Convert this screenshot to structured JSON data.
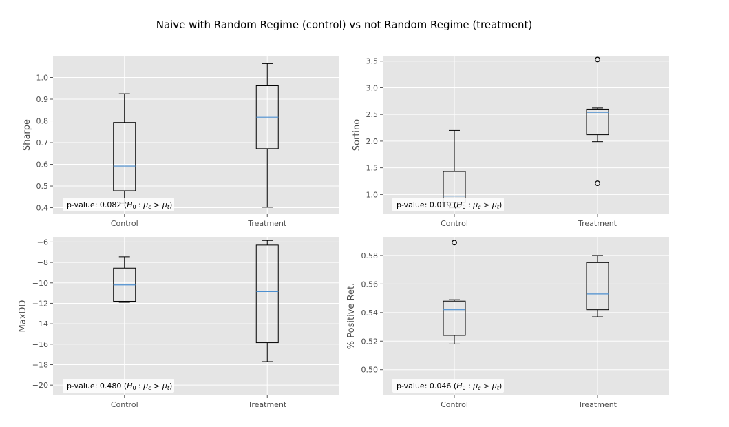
{
  "figure_title": "Naive with Random Regime (control) vs not Random Regime (treatment)",
  "chart_data": [
    {
      "type": "box",
      "ylabel": "Sharpe",
      "categories": [
        "Control",
        "Treatment"
      ],
      "ylim": [
        0.37,
        1.1
      ],
      "yticks": [
        0.4,
        0.5,
        0.6,
        0.7,
        0.8,
        0.9,
        1.0
      ],
      "ytick_labels": [
        "0.4",
        "0.5",
        "0.6",
        "0.7",
        "0.8",
        "0.9",
        "1.0"
      ],
      "grid": true,
      "boxes": [
        {
          "name": "Control",
          "whislo": 0.42,
          "q1": 0.478,
          "med": 0.592,
          "q3": 0.793,
          "whishi": 0.925,
          "fliers": []
        },
        {
          "name": "Treatment",
          "whislo": 0.402,
          "q1": 0.672,
          "med": 0.817,
          "q3": 0.962,
          "whishi": 1.064,
          "fliers": []
        }
      ],
      "annotation": {
        "prefix": "p-value: ",
        "value": "0.082",
        "hypothesis_open": " (",
        "h": "H",
        "h_sub": "0",
        "colon": " : ",
        "mu": "μ",
        "c": "c",
        "gt": " > ",
        "t": "t",
        "close": ")"
      }
    },
    {
      "type": "box",
      "ylabel": "Sortino",
      "categories": [
        "Control",
        "Treatment"
      ],
      "ylim": [
        0.63,
        3.6
      ],
      "yticks": [
        1.0,
        1.5,
        2.0,
        2.5,
        3.0,
        3.5
      ],
      "ytick_labels": [
        "1.0",
        "1.5",
        "2.0",
        "2.5",
        "3.0",
        "3.5"
      ],
      "grid": true,
      "boxes": [
        {
          "name": "Control",
          "whislo": 0.75,
          "q1": 0.85,
          "med": 0.97,
          "q3": 1.43,
          "whishi": 2.2,
          "fliers": []
        },
        {
          "name": "Treatment",
          "whislo": 1.99,
          "q1": 2.12,
          "med": 2.54,
          "q3": 2.6,
          "whishi": 2.62,
          "fliers": [
            3.53,
            1.21
          ]
        }
      ],
      "annotation": {
        "prefix": "p-value: ",
        "value": "0.019",
        "hypothesis_open": " (",
        "h": "H",
        "h_sub": "0",
        "colon": " : ",
        "mu": "μ",
        "c": "c",
        "gt": " > ",
        "t": "t",
        "close": ")"
      }
    },
    {
      "type": "box",
      "ylabel": "MaxDD",
      "categories": [
        "Control",
        "Treatment"
      ],
      "ylim": [
        -21,
        -5.5
      ],
      "yticks": [
        -20,
        -18,
        -16,
        -14,
        -12,
        -10,
        -8,
        -6
      ],
      "ytick_labels": [
        "−20",
        "−18",
        "−16",
        "−14",
        "−12",
        "−10",
        "−8",
        "−6"
      ],
      "grid": true,
      "boxes": [
        {
          "name": "Control",
          "whislo": -11.9,
          "q1": -11.8,
          "med": -10.2,
          "q3": -8.55,
          "whishi": -7.45,
          "fliers": []
        },
        {
          "name": "Treatment",
          "whislo": -17.7,
          "q1": -15.85,
          "med": -10.85,
          "q3": -6.3,
          "whishi": -5.85,
          "fliers": []
        }
      ],
      "annotation": {
        "prefix": "p-value: ",
        "value": "0.480",
        "hypothesis_open": " (",
        "h": "H",
        "h_sub": "0",
        "colon": " : ",
        "mu": "μ",
        "c": "c",
        "gt": " > ",
        "t": "t",
        "close": ")"
      }
    },
    {
      "type": "box",
      "ylabel": "% Positive Ret.",
      "categories": [
        "Control",
        "Treatment"
      ],
      "ylim": [
        0.482,
        0.593
      ],
      "yticks": [
        0.5,
        0.52,
        0.54,
        0.56,
        0.58
      ],
      "ytick_labels": [
        "0.50",
        "0.52",
        "0.54",
        "0.56",
        "0.58"
      ],
      "grid": true,
      "boxes": [
        {
          "name": "Control",
          "whislo": 0.518,
          "q1": 0.524,
          "med": 0.542,
          "q3": 0.548,
          "whishi": 0.549,
          "fliers": [
            0.589
          ]
        },
        {
          "name": "Treatment",
          "whislo": 0.537,
          "q1": 0.542,
          "med": 0.553,
          "q3": 0.575,
          "whishi": 0.58,
          "fliers": []
        }
      ],
      "annotation": {
        "prefix": "p-value: ",
        "value": "0.046",
        "hypothesis_open": " (",
        "h": "H",
        "h_sub": "0",
        "colon": " : ",
        "mu": "μ",
        "c": "c",
        "gt": " > ",
        "t": "t",
        "close": ")"
      }
    }
  ]
}
